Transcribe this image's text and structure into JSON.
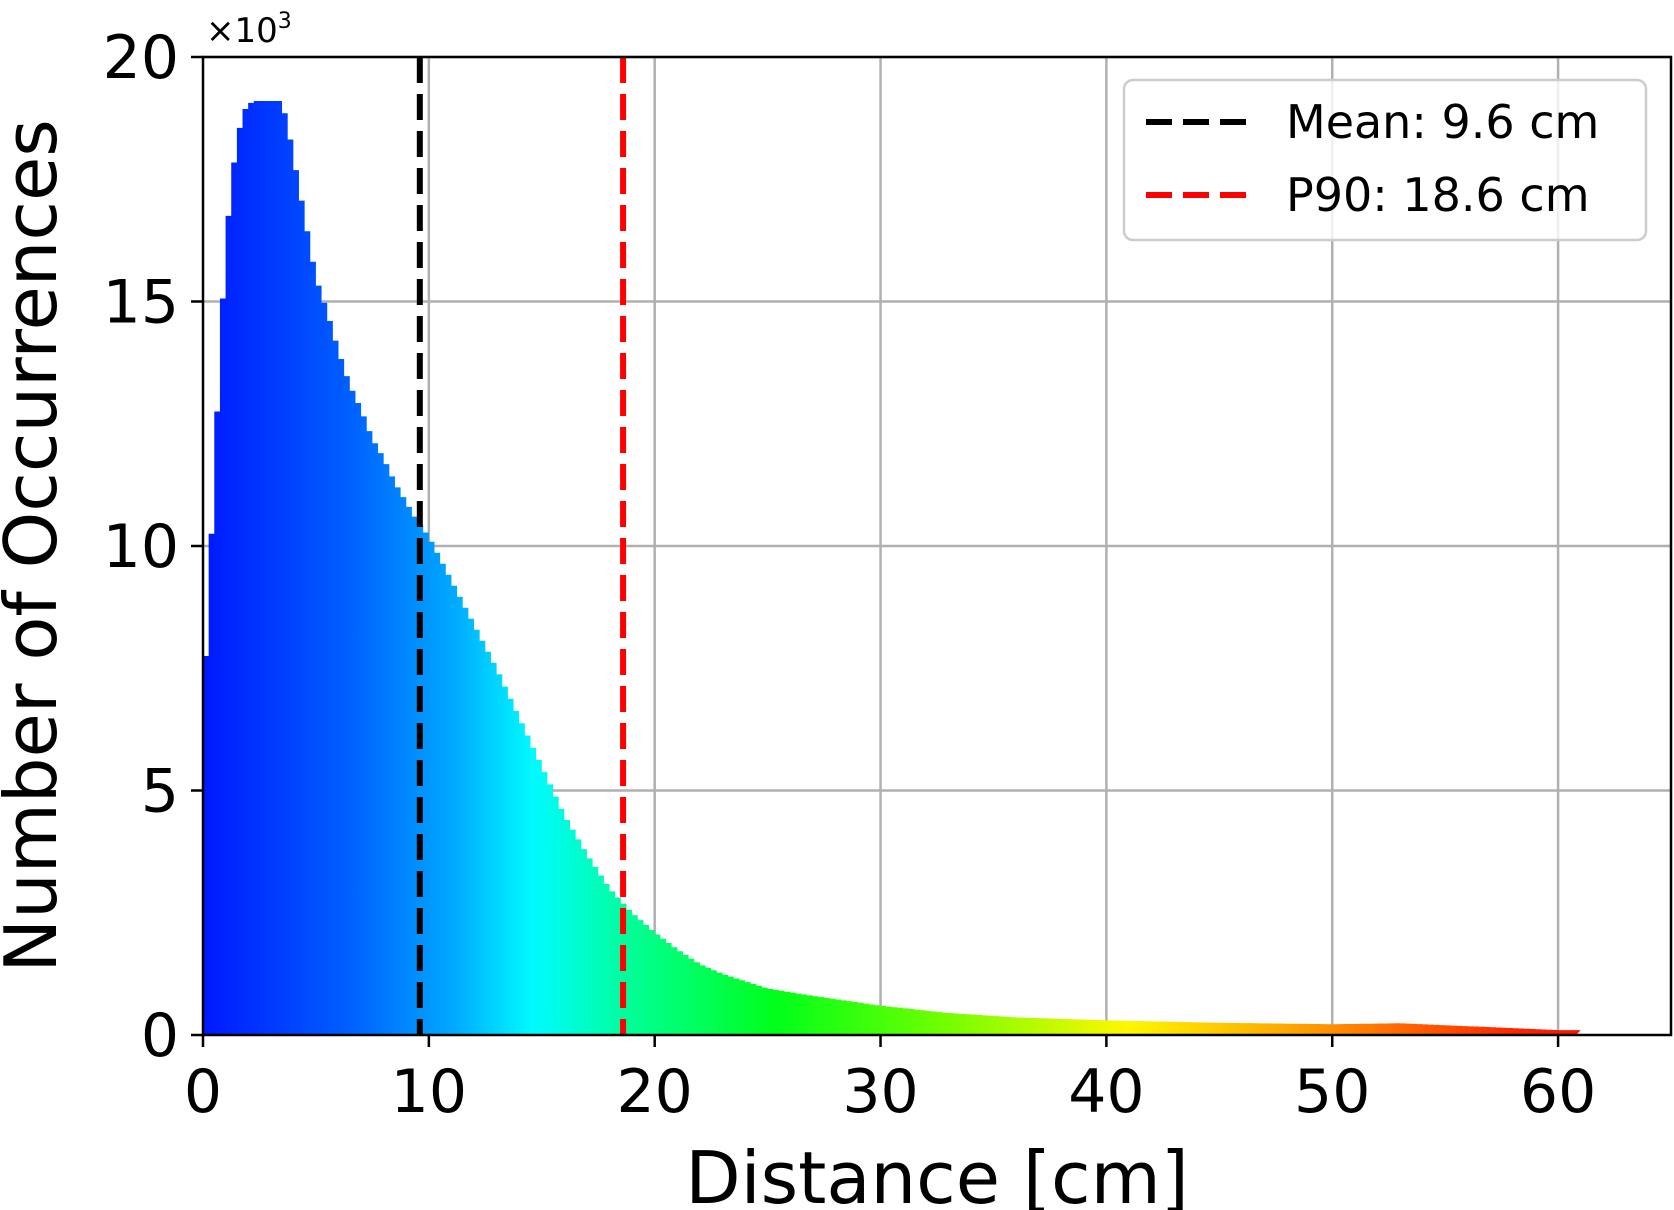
{
  "chart_data": {
    "type": "bar",
    "title": "",
    "xlabel": "Distance [cm]",
    "ylabel": "Number of Occurrences",
    "xlim": [
      0,
      65
    ],
    "ylim": [
      0,
      20
    ],
    "y_multiplier_base": "×10",
    "y_multiplier_exp": "3",
    "xticks": [
      0,
      10,
      20,
      30,
      40,
      50,
      60
    ],
    "yticks": [
      0,
      5,
      10,
      15,
      20
    ],
    "grid": true,
    "legend_placement": "top-right",
    "colormap": "jet-like (blue at low distance to red at high distance)",
    "histogram_profile": {
      "x": [
        0,
        0.1,
        0.2,
        0.4,
        0.6,
        0.8,
        1.0,
        1.2,
        1.5,
        1.8,
        2.2,
        2.6,
        3.0,
        3.5,
        3.8,
        4.2,
        4.6,
        5.0,
        5.5,
        6.0,
        6.5,
        7.0,
        7.5,
        8.0,
        8.5,
        9.0,
        9.5,
        10.0,
        11.0,
        12.0,
        13.0,
        14.0,
        15.0,
        16.0,
        17.0,
        18.0,
        18.6,
        19.0,
        20.0,
        21.0,
        22.0,
        23.0,
        24.0,
        25.0,
        27.0,
        30.0,
        33.0,
        36.0,
        40.0,
        45.0,
        50.0,
        53.0,
        55.0,
        58.0,
        60.0,
        60.8
      ],
      "y_thousands": [
        6.3,
        7.5,
        8.5,
        10.5,
        12.5,
        14.5,
        16.0,
        17.2,
        18.3,
        18.9,
        19.1,
        19.1,
        19.1,
        19.1,
        18.5,
        17.5,
        16.5,
        15.5,
        14.8,
        14.0,
        13.3,
        12.8,
        12.2,
        11.8,
        11.3,
        10.9,
        10.5,
        10.2,
        9.3,
        8.4,
        7.5,
        6.5,
        5.5,
        4.5,
        3.7,
        3.0,
        2.7,
        2.5,
        2.1,
        1.75,
        1.45,
        1.25,
        1.1,
        0.95,
        0.8,
        0.6,
        0.45,
        0.36,
        0.3,
        0.25,
        0.22,
        0.24,
        0.2,
        0.14,
        0.1,
        0.1
      ]
    },
    "vertical_lines": [
      {
        "name": "Mean: 9.6 cm",
        "x": 9.6,
        "color": "#000000",
        "style": "dashed"
      },
      {
        "name": "P90: 18.6 cm",
        "x": 18.6,
        "color": "#ff0000",
        "style": "dashed"
      }
    ]
  }
}
